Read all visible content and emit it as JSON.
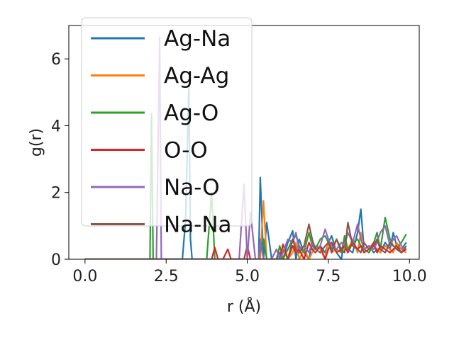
{
  "chart_data": {
    "type": "line",
    "xlabel": "r (Å)",
    "ylabel": "g(r)",
    "xlim": [
      -0.5,
      10.3
    ],
    "ylim": [
      0,
      7
    ],
    "xticks": [
      "0.0",
      "2.5",
      "5.0",
      "7.5",
      "10.0"
    ],
    "xtick_values": [
      0,
      2.5,
      5,
      7.5,
      10
    ],
    "yticks": [
      "0",
      "2",
      "4",
      "6"
    ],
    "ytick_values": [
      0,
      2,
      4,
      6
    ],
    "grid": false,
    "legend_position": "top-left",
    "x": [
      0,
      0.25,
      0.5,
      0.75,
      1,
      1.25,
      1.5,
      1.75,
      2,
      2.05,
      2.1,
      2.2,
      2.3,
      2.35,
      2.4,
      2.5,
      2.75,
      3,
      3.1,
      3.2,
      3.25,
      3.3,
      3.4,
      3.5,
      3.6,
      3.75,
      3.9,
      4,
      4.1,
      4.25,
      4.4,
      4.5,
      4.6,
      4.75,
      4.9,
      5,
      5.1,
      5.25,
      5.35,
      5.4,
      5.5,
      5.6,
      5.75,
      5.9,
      6,
      6.1,
      6.25,
      6.4,
      6.5,
      6.6,
      6.75,
      6.9,
      7,
      7.1,
      7.25,
      7.4,
      7.5,
      7.6,
      7.75,
      7.9,
      8,
      8.1,
      8.25,
      8.4,
      8.5,
      8.6,
      8.75,
      8.9,
      9,
      9.1,
      9.25,
      9.4,
      9.5,
      9.6,
      9.75,
      9.9
    ],
    "series": [
      {
        "name": "Ag-Na",
        "color": "#1f77b4",
        "values": [
          0,
          0,
          0,
          0,
          0,
          0,
          0,
          0,
          0,
          0,
          0,
          0,
          0,
          0,
          0,
          0,
          0,
          0,
          1.2,
          5.2,
          0.6,
          0,
          0,
          0,
          0,
          0,
          0,
          0,
          0,
          0,
          0,
          0,
          0,
          0,
          0,
          0,
          0,
          0,
          0,
          2.45,
          0,
          1.1,
          0,
          0,
          0.2,
          0,
          0.5,
          0.85,
          0,
          0.6,
          0.2,
          0,
          0.5,
          0.3,
          0.4,
          0.2,
          0.5,
          0.7,
          0.2,
          0,
          0.6,
          0.3,
          0.2,
          0.8,
          1.5,
          0.3,
          0.4,
          0.2,
          0.3,
          0.2,
          0.5,
          0.3,
          0.8,
          0.4,
          0.3,
          0.5
        ]
      },
      {
        "name": "Ag-Ag",
        "color": "#ff7f0e",
        "values": [
          0,
          0,
          0,
          0,
          0,
          0,
          0,
          0,
          0,
          0,
          0,
          0,
          0,
          0,
          0,
          0,
          0,
          0,
          0,
          0,
          0,
          0,
          0,
          0,
          0,
          0,
          0,
          0,
          0,
          0,
          0,
          0,
          0,
          0,
          0,
          0,
          0,
          0,
          0,
          0,
          1.75,
          0,
          0,
          0,
          0,
          0.3,
          0,
          0.2,
          0.5,
          0,
          0.3,
          0,
          0.2,
          0.4,
          0.3,
          0,
          0.6,
          0.2,
          0.3,
          0.2,
          0.5,
          0.3,
          0.6,
          0.2,
          0.8,
          0.3,
          0.2,
          0.4,
          0.3,
          0.2,
          0.4,
          0.3,
          0.2,
          0.5,
          0.3,
          0.2
        ]
      },
      {
        "name": "Ag-O",
        "color": "#2ca02c",
        "values": [
          0,
          0,
          0,
          0,
          0,
          0,
          0,
          0,
          0,
          4.35,
          0,
          0,
          0,
          0,
          0,
          0,
          0,
          0,
          0,
          0,
          0,
          0,
          0,
          0,
          0,
          0,
          2.0,
          0,
          0,
          0,
          0,
          0,
          0,
          0,
          0,
          0,
          0,
          0,
          0,
          0.3,
          0.6,
          0,
          0,
          0,
          0.4,
          0,
          0.3,
          0.6,
          0.7,
          0.4,
          0.2,
          0.8,
          0.4,
          0.3,
          0.6,
          0.7,
          0.5,
          0.3,
          0.6,
          0.2,
          0.7,
          0.3,
          0.5,
          0.6,
          0.4,
          0.3,
          0.2,
          0.5,
          0.8,
          0.3,
          1.25,
          0.6,
          0.4,
          0.3,
          0.5,
          0.75
        ]
      },
      {
        "name": "O-O",
        "color": "#d62728",
        "values": [
          0,
          0,
          0,
          0,
          0,
          0,
          0,
          0,
          0,
          0,
          0,
          0,
          0,
          0,
          0,
          0,
          0,
          0,
          0,
          0,
          0,
          0,
          0,
          0,
          0,
          0,
          0,
          0.35,
          0,
          0,
          0.3,
          0,
          0,
          0,
          0,
          0.4,
          0,
          0,
          0,
          0,
          0,
          0,
          0,
          0,
          0,
          0.45,
          0,
          0.4,
          0.2,
          0.3,
          0,
          0.5,
          0.3,
          0.2,
          0.4,
          0,
          0.3,
          0.5,
          0.2,
          0.3,
          0.4,
          0.2,
          0.5,
          0.3,
          0.4,
          0.2,
          0.3,
          0.5,
          0.2,
          0.4,
          0.3,
          0.2,
          0.3,
          0.4,
          0.2,
          0.3
        ]
      },
      {
        "name": "Na-O",
        "color": "#9467bd",
        "values": [
          0,
          0,
          0,
          0,
          0,
          0,
          0,
          0,
          0,
          0,
          0,
          0,
          6.65,
          0,
          0,
          0,
          0,
          0,
          0,
          0,
          0,
          0,
          0,
          0,
          0,
          0,
          0,
          0,
          0,
          0,
          0,
          0,
          0,
          0,
          2.25,
          0,
          1.4,
          0,
          0,
          0.6,
          0,
          0,
          0,
          0.3,
          0,
          0.2,
          0.6,
          0.5,
          0.8,
          0.3,
          0.4,
          0.2,
          0.5,
          0.3,
          0.4,
          0.9,
          0.6,
          0.4,
          0.3,
          0.5,
          0.4,
          0.8,
          0.5,
          1.05,
          0.6,
          0.3,
          0.4,
          0.3,
          0.5,
          0.8,
          1.0,
          0.4,
          0.6,
          0.7,
          0.4,
          0.3
        ]
      },
      {
        "name": "Na-Na",
        "color": "#8c564b",
        "values": [
          0,
          0,
          0,
          0,
          0,
          0,
          0,
          0,
          0,
          0,
          0,
          0,
          0,
          0,
          0,
          0,
          0,
          0,
          0,
          0,
          0,
          0,
          0,
          0,
          0,
          0,
          0,
          0,
          0,
          0,
          0,
          0,
          0,
          0,
          0,
          0,
          0,
          0,
          0,
          0,
          0,
          0,
          0,
          0,
          0,
          0,
          0,
          0.6,
          0.3,
          0.2,
          0.4,
          1.05,
          0.6,
          0.3,
          0.2,
          0.4,
          0.5,
          0.2,
          0.6,
          0.3,
          0.2,
          1.1,
          0.4,
          0.3,
          0.2,
          0.5,
          0.3,
          0.4,
          0.6,
          0.3,
          0.2,
          0.5,
          0.4,
          0.3,
          0.2,
          0.4
        ]
      }
    ]
  }
}
